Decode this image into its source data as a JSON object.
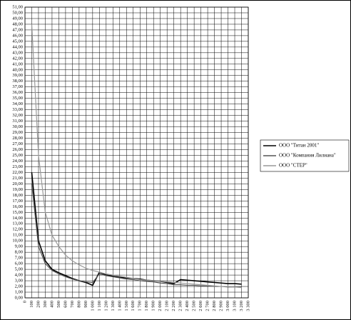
{
  "chart_data": {
    "type": "line",
    "x": [
      100,
      200,
      300,
      400,
      500,
      600,
      700,
      800,
      900,
      1000,
      1100,
      1200,
      1300,
      1400,
      1500,
      1600,
      1700,
      1800,
      1900,
      2000,
      2100,
      2200,
      2300,
      2400,
      2500,
      2600,
      2700,
      2800,
      2900,
      3000,
      3100,
      3200
    ],
    "series": [
      {
        "name": "ООО \"Титан 2001\"",
        "color": "#000000",
        "values": [
          22,
          10,
          6.5,
          5,
          4.4,
          3.9,
          3.4,
          3,
          2.7,
          2.2,
          4.5,
          4,
          3.8,
          3.6,
          3.5,
          3.4,
          3.3,
          3.1,
          3,
          2.9,
          2.7,
          2.5,
          3.2,
          3.1,
          3,
          2.9,
          2.8,
          2.7,
          2.6,
          2.5,
          2.5,
          2.4
        ]
      },
      {
        "name": "ООО \"Компания Лилиана\"",
        "color": "#555555",
        "values": [
          20,
          9,
          6,
          4.8,
          4.2,
          3.7,
          3.3,
          3,
          2.8,
          2.7,
          4.2,
          3.9,
          3.7,
          3.5,
          3.3,
          3.2,
          3,
          2.9,
          2.8,
          2.6,
          2.5,
          2.3,
          2.3,
          2.2,
          2.2,
          2.1,
          2.1,
          2,
          2,
          1.9,
          1.9,
          1.9
        ]
      },
      {
        "name": "ООО \"СТЕР\"",
        "color": "#999999",
        "values": [
          48,
          25,
          15,
          11,
          9,
          7.5,
          6.5,
          5.8,
          5.2,
          4.8,
          4.5,
          4.2,
          4,
          3.8,
          3.6,
          3.4,
          3.2,
          3.1,
          3,
          2.9,
          2.8,
          2.7,
          2.6,
          2.5,
          2.4,
          2.3,
          2.2,
          2.1,
          2,
          2,
          1.9,
          1.8
        ]
      }
    ],
    "xlim": [
      0,
      3300
    ],
    "xticks": [
      0,
      100,
      200,
      300,
      400,
      500,
      600,
      700,
      800,
      900,
      {
        "value": 1000,
        "label": "1 000"
      },
      {
        "value": 1100,
        "label": "1 100"
      },
      {
        "value": 1200,
        "label": "1 200"
      },
      {
        "value": 1300,
        "label": "1 300"
      },
      {
        "value": 1400,
        "label": "1 400"
      },
      {
        "value": 1500,
        "label": "1 500"
      },
      {
        "value": 1600,
        "label": "1 600"
      },
      {
        "value": 1700,
        "label": "1 700"
      },
      {
        "value": 1800,
        "label": "1 800"
      },
      {
        "value": 1900,
        "label": "1 900"
      },
      {
        "value": 2000,
        "label": "2 000"
      },
      {
        "value": 2100,
        "label": "2 100"
      },
      {
        "value": 2200,
        "label": "2 200"
      },
      {
        "value": 2300,
        "label": "2 300"
      },
      {
        "value": 2400,
        "label": "2 400"
      },
      {
        "value": 2500,
        "label": "2 500"
      },
      {
        "value": 2600,
        "label": "2 600"
      },
      {
        "value": 2700,
        "label": "2 700"
      },
      {
        "value": 2800,
        "label": "2 800"
      },
      {
        "value": 2900,
        "label": "2 900"
      },
      {
        "value": 3000,
        "label": "3 000"
      },
      {
        "value": 3100,
        "label": "3 100"
      },
      {
        "value": 3200,
        "label": "3 200"
      },
      {
        "value": 3300,
        "label": "3 300"
      }
    ],
    "ylim": [
      0,
      51
    ],
    "yticks": [
      {
        "value": 0,
        "label": "0,00"
      },
      {
        "value": 1,
        "label": "1,00"
      },
      {
        "value": 2,
        "label": "2,00"
      },
      {
        "value": 3,
        "label": "3,00"
      },
      {
        "value": 4,
        "label": "4,00"
      },
      {
        "value": 5,
        "label": "5,00"
      },
      {
        "value": 6,
        "label": "6,00"
      },
      {
        "value": 7,
        "label": "7,00"
      },
      {
        "value": 8,
        "label": "8,00"
      },
      {
        "value": 9,
        "label": "9,00"
      },
      {
        "value": 10,
        "label": "10,00"
      },
      {
        "value": 11,
        "label": "11,00"
      },
      {
        "value": 12,
        "label": "12,00"
      },
      {
        "value": 13,
        "label": "13,00"
      },
      {
        "value": 14,
        "label": "14,00"
      },
      {
        "value": 15,
        "label": "15,00"
      },
      {
        "value": 16,
        "label": "16,00"
      },
      {
        "value": 17,
        "label": "17,00"
      },
      {
        "value": 18,
        "label": "18,00"
      },
      {
        "value": 19,
        "label": "19,00"
      },
      {
        "value": 20,
        "label": "20,00"
      },
      {
        "value": 21,
        "label": "21,00"
      },
      {
        "value": 22,
        "label": "22,00"
      },
      {
        "value": 23,
        "label": "23,00"
      },
      {
        "value": 24,
        "label": "24,00"
      },
      {
        "value": 25,
        "label": "25,00"
      },
      {
        "value": 26,
        "label": "26,00"
      },
      {
        "value": 27,
        "label": "27,00"
      },
      {
        "value": 28,
        "label": "28,00"
      },
      {
        "value": 29,
        "label": "29,00"
      },
      {
        "value": 30,
        "label": "30,00"
      },
      {
        "value": 31,
        "label": "31,00"
      },
      {
        "value": 32,
        "label": "32,00"
      },
      {
        "value": 33,
        "label": "33,00"
      },
      {
        "value": 34,
        "label": "34,00"
      },
      {
        "value": 35,
        "label": "35,00"
      },
      {
        "value": 36,
        "label": "36,00"
      },
      {
        "value": 37,
        "label": "37,00"
      },
      {
        "value": 38,
        "label": "38,00"
      },
      {
        "value": 39,
        "label": "39,00"
      },
      {
        "value": 40,
        "label": "40,00"
      },
      {
        "value": 41,
        "label": "41,00"
      },
      {
        "value": 42,
        "label": "42,00"
      },
      {
        "value": 43,
        "label": "43,00"
      },
      {
        "value": 44,
        "label": "44,00"
      },
      {
        "value": 45,
        "label": "45,00"
      },
      {
        "value": 46,
        "label": "46,00"
      },
      {
        "value": 47,
        "label": "47,00"
      },
      {
        "value": 48,
        "label": "48,00"
      },
      {
        "value": 49,
        "label": "49,00"
      },
      {
        "value": 50,
        "label": "50,00"
      },
      {
        "value": 51,
        "label": "51,00"
      }
    ],
    "grid": true,
    "legend": "right"
  }
}
